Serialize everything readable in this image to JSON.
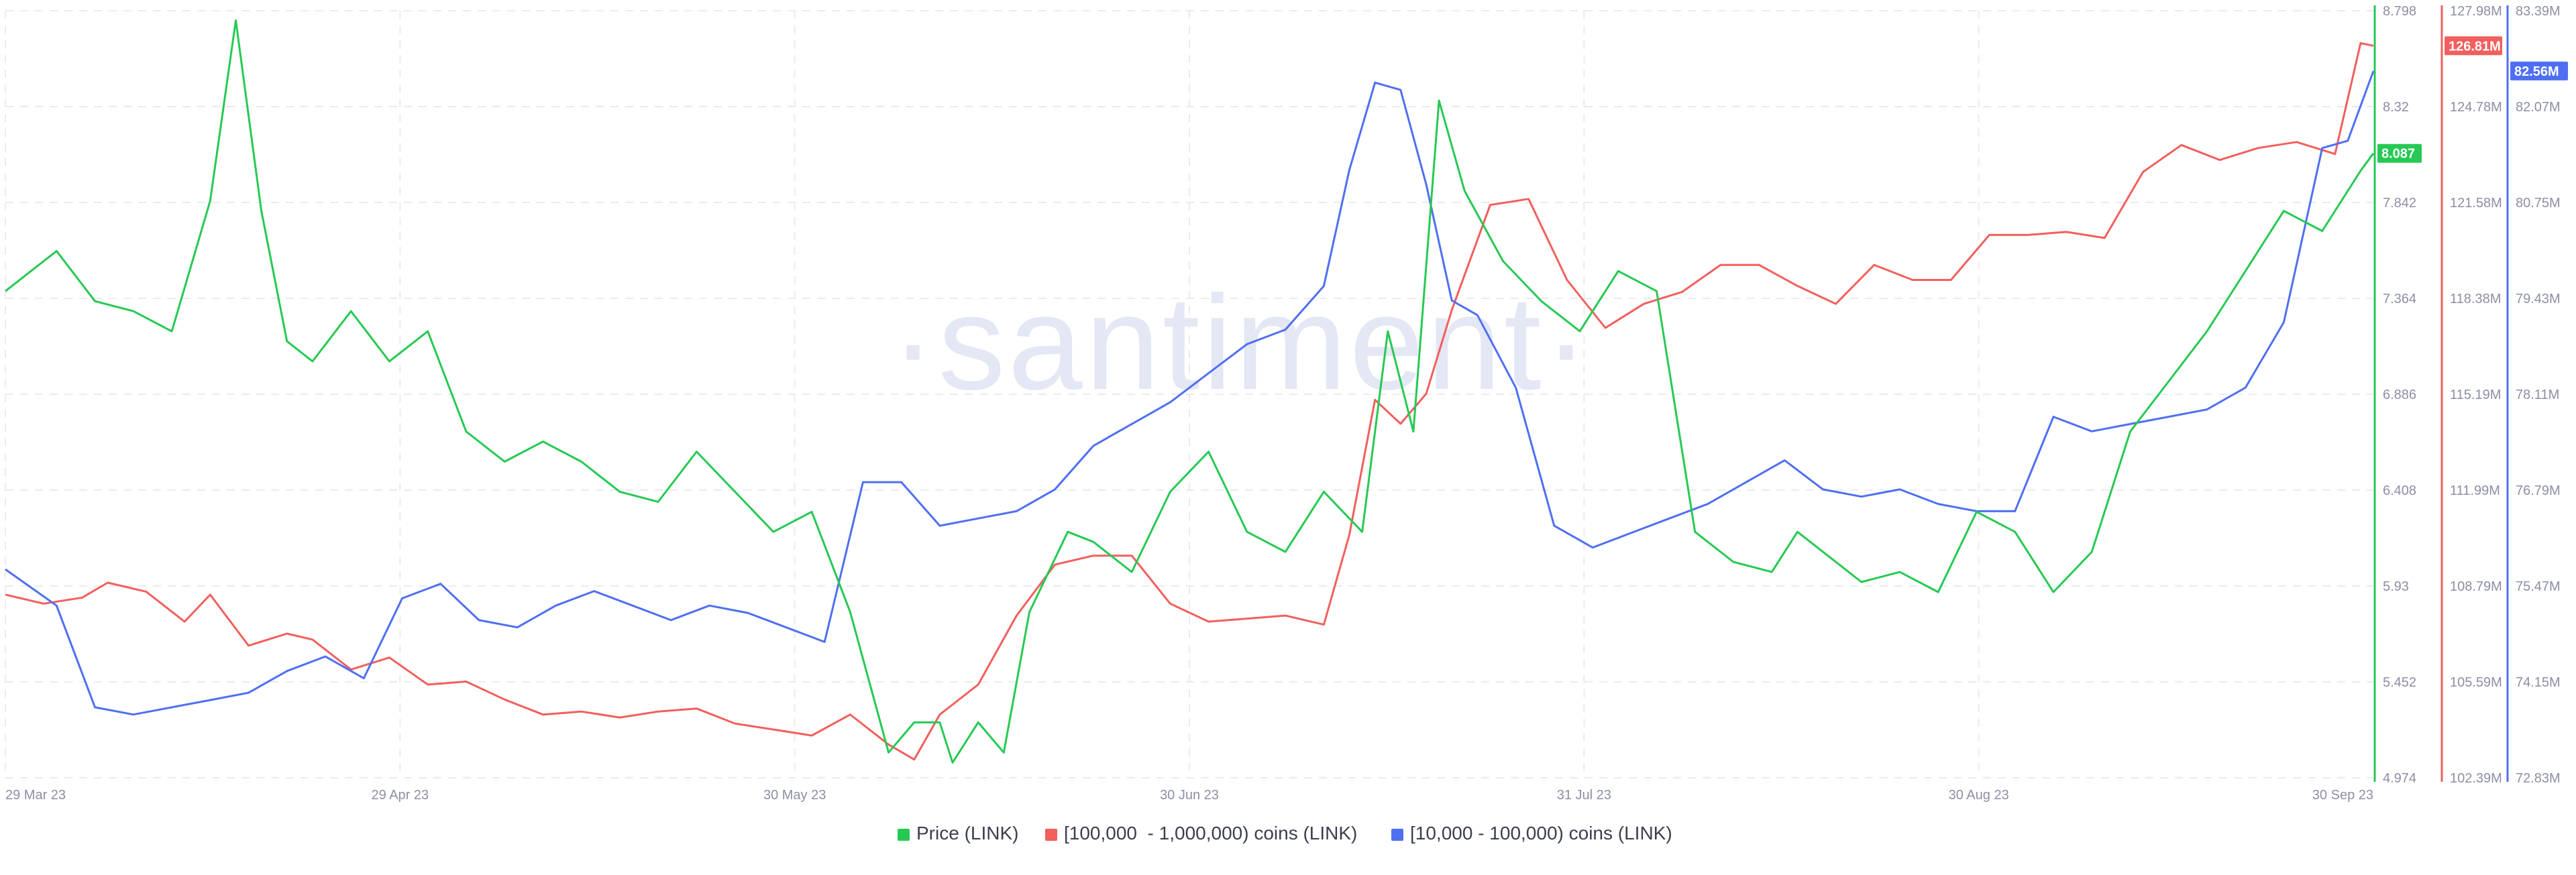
{
  "watermark": "·santiment·",
  "chart_data": {
    "type": "line",
    "x_ticks": [
      "29 Mar 23",
      "29 Apr 23",
      "30 May 23",
      "30 Jun 23",
      "31 Jul 23",
      "30 Aug 23",
      "30 Sep 23"
    ],
    "x_range": [
      "2023-03-29",
      "2023-09-30"
    ],
    "grid": true,
    "legend_position": "bottom-center",
    "axes": [
      {
        "id": "price",
        "color": "#26c953",
        "ylim": [
          4.974,
          8.798
        ],
        "ticks": [
          "8.798",
          "8.32",
          "7.842",
          "7.364",
          "6.886",
          "6.408",
          "5.93",
          "5.452",
          "4.974"
        ],
        "last_label": "8.087"
      },
      {
        "id": "whales",
        "color": "#f25f5c",
        "ylim": [
          102.39,
          127.98
        ],
        "ticks": [
          "127.98M",
          "124.78M",
          "121.58M",
          "118.38M",
          "115.19M",
          "111.99M",
          "108.79M",
          "105.59M",
          "102.39M"
        ],
        "last_label": "126.81M"
      },
      {
        "id": "sharks",
        "color": "#4f6ff2",
        "ylim": [
          72.83,
          83.39
        ],
        "ticks": [
          "83.39M",
          "82.07M",
          "80.75M",
          "79.43M",
          "78.11M",
          "76.79M",
          "75.47M",
          "74.15M",
          "72.83M"
        ],
        "last_label": "82.56M"
      }
    ],
    "series": [
      {
        "name": "Price (LINK)",
        "axis": "price",
        "color": "#26c953",
        "x": [
          "2023-03-29",
          "2023-04-02",
          "2023-04-05",
          "2023-04-08",
          "2023-04-11",
          "2023-04-14",
          "2023-04-16",
          "2023-04-18",
          "2023-04-20",
          "2023-04-22",
          "2023-04-25",
          "2023-04-28",
          "2023-05-01",
          "2023-05-04",
          "2023-05-07",
          "2023-05-10",
          "2023-05-13",
          "2023-05-16",
          "2023-05-19",
          "2023-05-22",
          "2023-05-25",
          "2023-05-28",
          "2023-05-31",
          "2023-06-03",
          "2023-06-06",
          "2023-06-08",
          "2023-06-10",
          "2023-06-11",
          "2023-06-13",
          "2023-06-15",
          "2023-06-17",
          "2023-06-20",
          "2023-06-22",
          "2023-06-25",
          "2023-06-28",
          "2023-07-01",
          "2023-07-04",
          "2023-07-07",
          "2023-07-10",
          "2023-07-13",
          "2023-07-15",
          "2023-07-17",
          "2023-07-19",
          "2023-07-21",
          "2023-07-24",
          "2023-07-27",
          "2023-07-30",
          "2023-08-02",
          "2023-08-05",
          "2023-08-08",
          "2023-08-11",
          "2023-08-14",
          "2023-08-16",
          "2023-08-18",
          "2023-08-21",
          "2023-08-24",
          "2023-08-27",
          "2023-08-30",
          "2023-09-02",
          "2023-09-05",
          "2023-09-08",
          "2023-09-11",
          "2023-09-14",
          "2023-09-17",
          "2023-09-20",
          "2023-09-23",
          "2023-09-26",
          "2023-09-29",
          "2023-09-30"
        ],
        "values": [
          7.4,
          7.6,
          7.35,
          7.3,
          7.2,
          7.85,
          8.75,
          7.8,
          7.15,
          7.05,
          7.3,
          7.05,
          7.2,
          6.7,
          6.55,
          6.65,
          6.55,
          6.4,
          6.35,
          6.6,
          6.4,
          6.2,
          6.3,
          5.8,
          5.1,
          5.25,
          5.25,
          5.05,
          5.25,
          5.1,
          5.8,
          6.2,
          6.15,
          6.0,
          6.4,
          6.6,
          6.2,
          6.1,
          6.4,
          6.2,
          7.2,
          6.7,
          8.35,
          7.9,
          7.55,
          7.35,
          7.2,
          7.5,
          7.4,
          6.2,
          6.05,
          6.0,
          6.2,
          6.1,
          5.95,
          6.0,
          5.9,
          6.3,
          6.2,
          5.9,
          6.1,
          6.7,
          6.95,
          7.2,
          7.5,
          7.8,
          7.7,
          8.0,
          8.087
        ]
      },
      {
        "name": "[100,000  - 1,000,000) coins (LINK)",
        "axis": "whales",
        "color": "#f25f5c",
        "x": [
          "2023-03-29",
          "2023-04-01",
          "2023-04-04",
          "2023-04-06",
          "2023-04-09",
          "2023-04-12",
          "2023-04-14",
          "2023-04-17",
          "2023-04-20",
          "2023-04-22",
          "2023-04-25",
          "2023-04-28",
          "2023-05-01",
          "2023-05-04",
          "2023-05-07",
          "2023-05-10",
          "2023-05-13",
          "2023-05-16",
          "2023-05-19",
          "2023-05-22",
          "2023-05-25",
          "2023-05-28",
          "2023-05-31",
          "2023-06-03",
          "2023-06-06",
          "2023-06-08",
          "2023-06-10",
          "2023-06-13",
          "2023-06-16",
          "2023-06-19",
          "2023-06-22",
          "2023-06-25",
          "2023-06-28",
          "2023-07-01",
          "2023-07-04",
          "2023-07-07",
          "2023-07-10",
          "2023-07-12",
          "2023-07-14",
          "2023-07-16",
          "2023-07-18",
          "2023-07-20",
          "2023-07-23",
          "2023-07-26",
          "2023-07-29",
          "2023-08-01",
          "2023-08-04",
          "2023-08-07",
          "2023-08-10",
          "2023-08-13",
          "2023-08-16",
          "2023-08-19",
          "2023-08-22",
          "2023-08-25",
          "2023-08-28",
          "2023-08-31",
          "2023-09-03",
          "2023-09-06",
          "2023-09-09",
          "2023-09-12",
          "2023-09-15",
          "2023-09-18",
          "2023-09-21",
          "2023-09-24",
          "2023-09-27",
          "2023-09-29",
          "2023-09-30"
        ],
        "values": [
          108.5,
          108.2,
          108.4,
          108.9,
          108.6,
          107.6,
          108.5,
          106.8,
          107.2,
          107.0,
          106.0,
          106.4,
          105.5,
          105.6,
          105.0,
          104.5,
          104.6,
          104.4,
          104.6,
          104.7,
          104.2,
          104.0,
          103.8,
          104.5,
          103.5,
          103.0,
          104.5,
          105.5,
          107.8,
          109.5,
          109.8,
          109.8,
          108.2,
          107.6,
          107.7,
          107.8,
          107.5,
          110.5,
          115.0,
          114.2,
          115.2,
          118.0,
          121.5,
          121.7,
          119.0,
          117.4,
          118.2,
          118.6,
          119.5,
          119.5,
          118.8,
          118.2,
          119.5,
          119.0,
          119.0,
          120.5,
          120.5,
          120.6,
          120.4,
          122.6,
          123.5,
          123.0,
          123.4,
          123.6,
          123.2,
          126.9,
          126.81
        ]
      },
      {
        "name": "[10,000 - 100,000) coins (LINK)",
        "axis": "sharks",
        "color": "#4f6ff2",
        "x": [
          "2023-03-29",
          "2023-04-02",
          "2023-04-05",
          "2023-04-08",
          "2023-04-11",
          "2023-04-14",
          "2023-04-17",
          "2023-04-20",
          "2023-04-23",
          "2023-04-26",
          "2023-04-29",
          "2023-05-02",
          "2023-05-05",
          "2023-05-08",
          "2023-05-11",
          "2023-05-14",
          "2023-05-17",
          "2023-05-20",
          "2023-05-23",
          "2023-05-26",
          "2023-05-29",
          "2023-06-01",
          "2023-06-04",
          "2023-06-07",
          "2023-06-10",
          "2023-06-13",
          "2023-06-16",
          "2023-06-19",
          "2023-06-22",
          "2023-06-25",
          "2023-06-28",
          "2023-07-01",
          "2023-07-04",
          "2023-07-07",
          "2023-07-10",
          "2023-07-12",
          "2023-07-14",
          "2023-07-16",
          "2023-07-18",
          "2023-07-20",
          "2023-07-22",
          "2023-07-25",
          "2023-07-28",
          "2023-07-31",
          "2023-08-03",
          "2023-08-06",
          "2023-08-09",
          "2023-08-12",
          "2023-08-15",
          "2023-08-18",
          "2023-08-21",
          "2023-08-24",
          "2023-08-27",
          "2023-08-30",
          "2023-09-02",
          "2023-09-05",
          "2023-09-08",
          "2023-09-11",
          "2023-09-14",
          "2023-09-17",
          "2023-09-20",
          "2023-09-23",
          "2023-09-26",
          "2023-09-28",
          "2023-09-30"
        ],
        "values": [
          75.7,
          75.2,
          73.8,
          73.7,
          73.8,
          73.9,
          74.0,
          74.3,
          74.5,
          74.2,
          75.3,
          75.5,
          75.0,
          74.9,
          75.2,
          75.4,
          75.2,
          75.0,
          75.2,
          75.1,
          74.9,
          74.7,
          76.9,
          76.9,
          76.3,
          76.4,
          76.5,
          76.8,
          77.4,
          77.7,
          78.0,
          78.4,
          78.8,
          79.0,
          79.6,
          81.2,
          82.4,
          82.3,
          81.0,
          79.4,
          79.2,
          78.2,
          76.3,
          76.0,
          76.2,
          76.4,
          76.6,
          76.9,
          77.2,
          76.8,
          76.7,
          76.8,
          76.6,
          76.5,
          76.5,
          77.8,
          77.6,
          77.7,
          77.8,
          77.9,
          78.2,
          79.1,
          81.5,
          81.6,
          82.56
        ]
      }
    ]
  }
}
